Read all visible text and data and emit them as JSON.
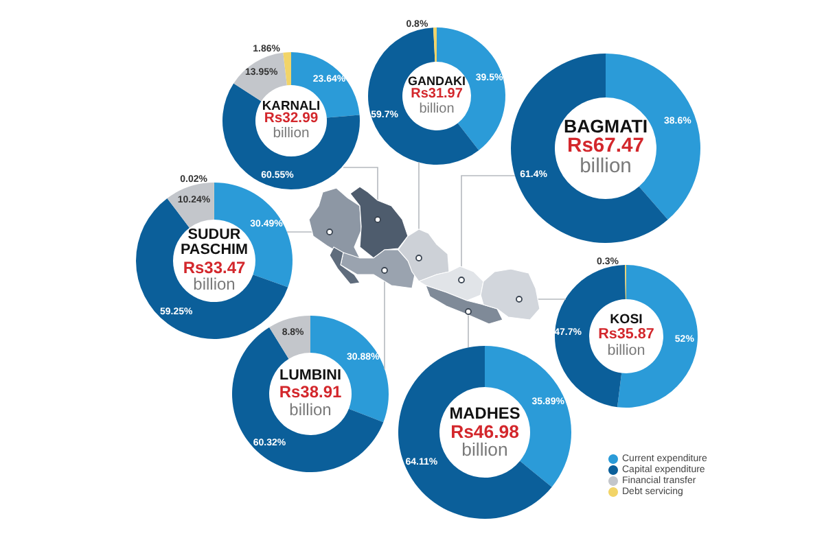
{
  "chart_data": {
    "type": "donut",
    "categories": [
      "Current expenditure",
      "Capital expenditure",
      "Financial transfer",
      "Debt servicing"
    ],
    "colors": [
      "#2b9bd8",
      "#0b5f9a",
      "#c3c6cb",
      "#f2d468"
    ],
    "legend": "bottom right",
    "series": [
      {
        "name": "KARNALI",
        "values": [
          23.64,
          60.55,
          13.95,
          1.86
        ],
        "value_labels": [
          "23.64%",
          "60.55%",
          "13.95%",
          "1.86%"
        ]
      },
      {
        "name": "GANDAKI",
        "values": [
          39.5,
          59.7,
          null,
          0.8
        ],
        "value_labels": [
          "39.5%",
          "59.7%",
          null,
          "0.8%"
        ]
      },
      {
        "name": "BAGMATI",
        "values": [
          38.6,
          61.4,
          null,
          null
        ],
        "value_labels": [
          "38.6%",
          "61.4%",
          null,
          null
        ]
      },
      {
        "name": "SUDUR PASCHIM",
        "values": [
          30.49,
          59.25,
          10.24,
          0.02
        ],
        "value_labels": [
          "30.49%",
          "59.25%",
          "10.24%",
          "0.02%"
        ]
      },
      {
        "name": "KOSI",
        "values": [
          52,
          47.7,
          null,
          0.3
        ],
        "value_labels": [
          "52%",
          "47.7%",
          null,
          "0.3%"
        ]
      },
      {
        "name": "LUMBINI",
        "values": [
          30.88,
          60.32,
          8.8,
          null
        ],
        "value_labels": [
          "30.88%",
          "60.32%",
          "8.8%",
          null
        ]
      },
      {
        "name": "MADHES",
        "values": [
          35.89,
          64.11,
          null,
          null
        ],
        "value_labels": [
          "35.89%",
          "64.11%",
          null,
          null
        ]
      }
    ],
    "annotations": [
      "Rs32.99 billion",
      "Rs31.97 billion",
      "Rs67.47 billion",
      "Rs33.47 billion",
      "Rs35.87 billion",
      "Rs38.91 billion",
      "Rs46.98 billion"
    ]
  }
}
